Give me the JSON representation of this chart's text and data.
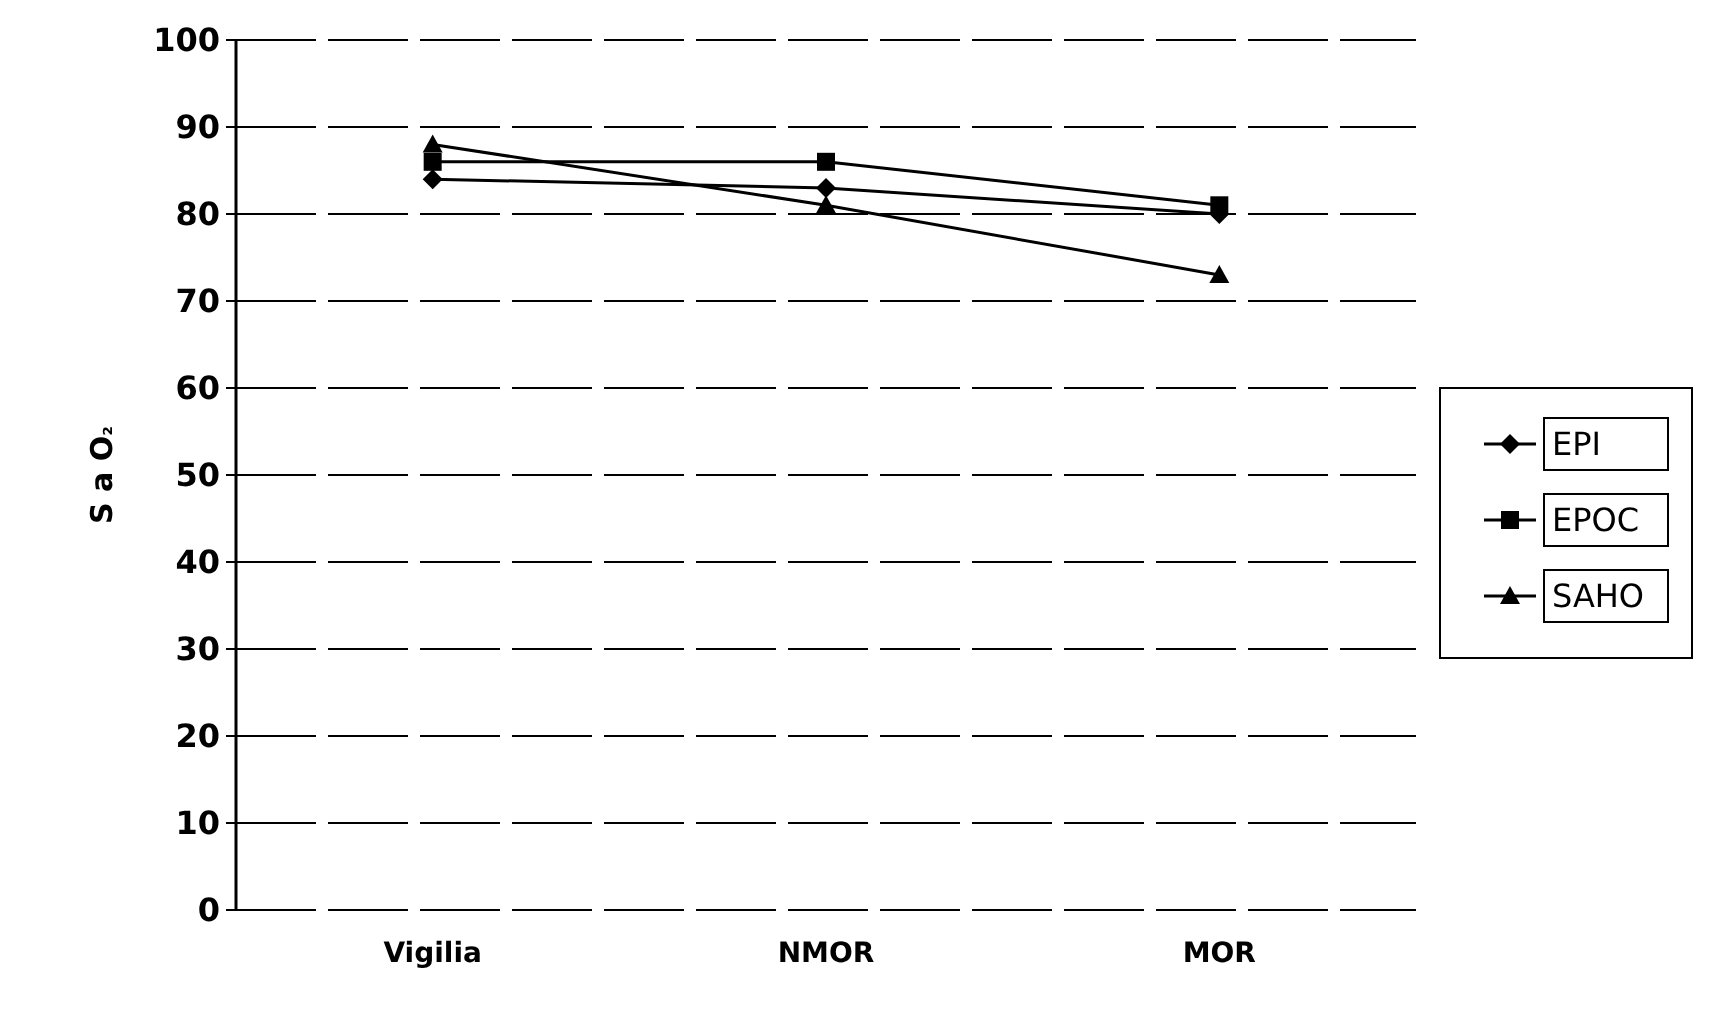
{
  "chart_data": {
    "type": "line",
    "ylabel": "S a O₂",
    "categories": [
      "Vigilia",
      "NMOR",
      "MOR"
    ],
    "series": [
      {
        "name": "EPI",
        "color": "#000000",
        "marker": "diamond",
        "values": [
          84,
          83,
          80
        ]
      },
      {
        "name": "EPOC",
        "color": "#000000",
        "marker": "square",
        "values": [
          86,
          86,
          81
        ]
      },
      {
        "name": "SAHO",
        "color": "#000000",
        "marker": "triangle",
        "values": [
          88,
          81,
          73
        ]
      }
    ],
    "ylim": [
      0,
      100
    ],
    "yticks": [
      0,
      10,
      20,
      30,
      40,
      50,
      60,
      70,
      80,
      90,
      100
    ],
    "grid": "y",
    "legend": "right"
  }
}
